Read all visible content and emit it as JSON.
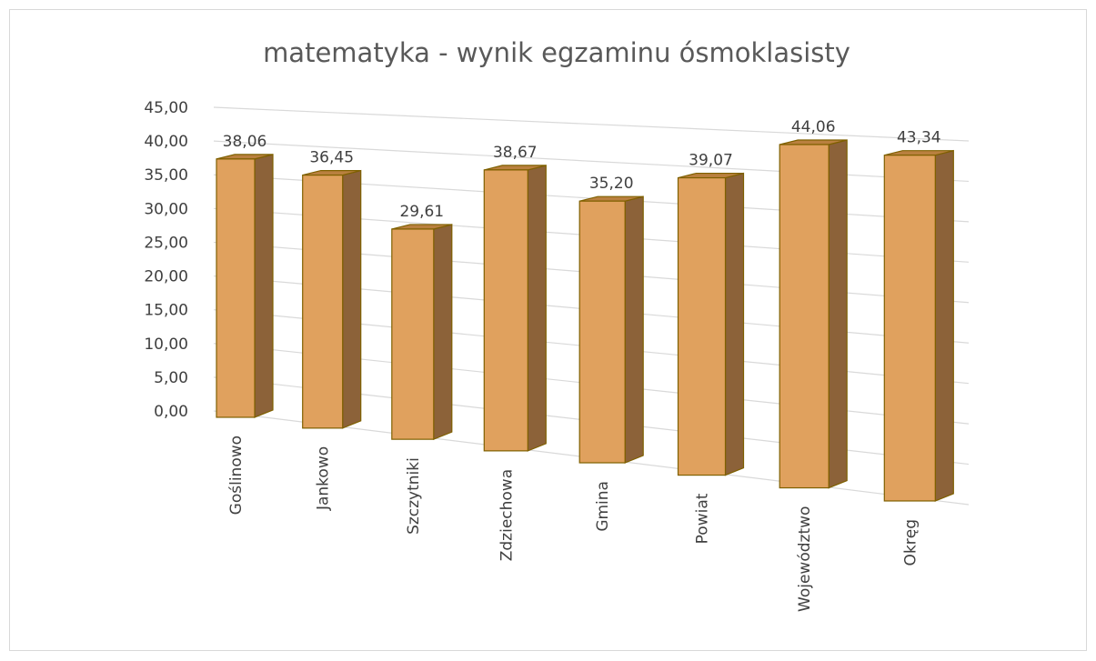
{
  "chart_data": {
    "type": "bar3d",
    "title": "matematyka - wynik egzaminu ósmoklasisty",
    "categories": [
      "Goślinowo",
      "Jankowo",
      "Szczytniki",
      "Zdziechowa",
      "Gmina",
      "Powiat",
      "Województwo",
      "Okręg"
    ],
    "values": [
      38.06,
      36.45,
      29.61,
      38.67,
      35.2,
      39.07,
      44.06,
      43.34
    ],
    "value_labels": [
      "38,06",
      "36,45",
      "29,61",
      "38,67",
      "35,20",
      "39,07",
      "44,06",
      "43,34"
    ],
    "color": "#e0a15e",
    "ylim": [
      0,
      45
    ],
    "yticks": [
      {
        "value": 0,
        "label": "0,00"
      },
      {
        "value": 5,
        "label": "5,00"
      },
      {
        "value": 10,
        "label": "10,00"
      },
      {
        "value": 15,
        "label": "15,00"
      },
      {
        "value": 20,
        "label": "20,00"
      },
      {
        "value": 25,
        "label": "25,00"
      },
      {
        "value": 30,
        "label": "30,00"
      },
      {
        "value": 35,
        "label": "35,00"
      },
      {
        "value": 40,
        "label": "40,00"
      },
      {
        "value": 45,
        "label": "45,00"
      }
    ],
    "grid": true
  }
}
